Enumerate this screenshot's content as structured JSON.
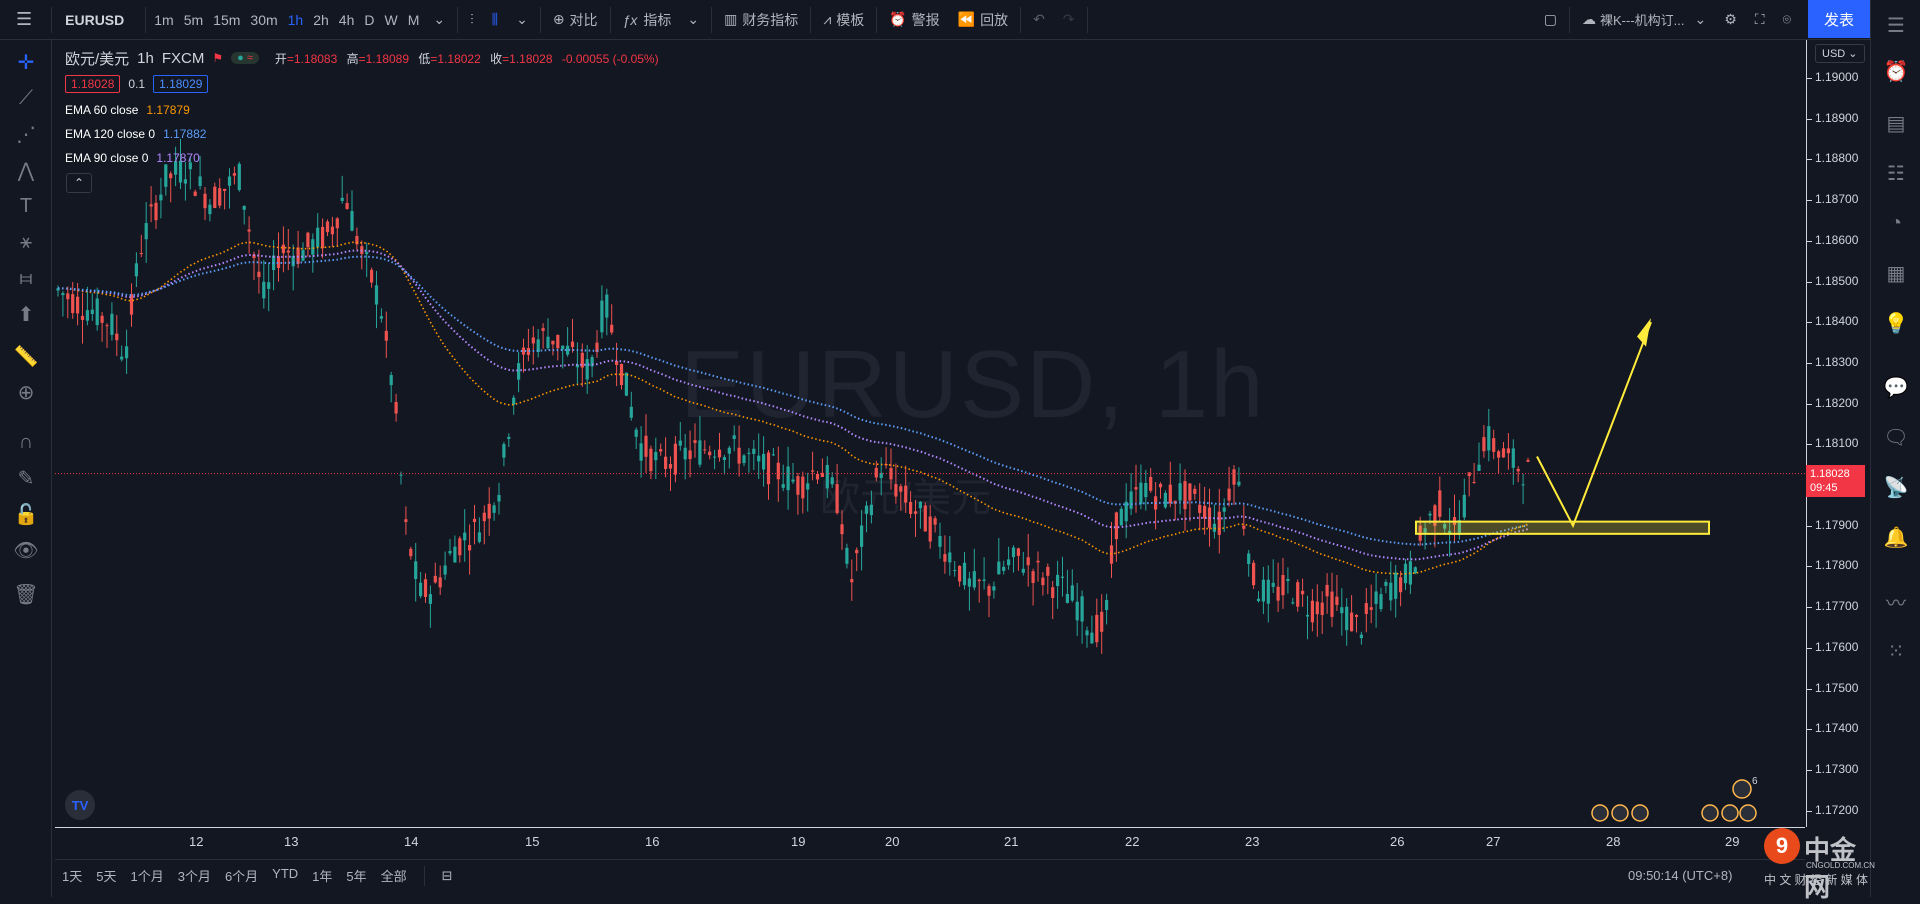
{
  "toolbar": {
    "symbol": "EURUSD",
    "intervals": [
      "1m",
      "5m",
      "15m",
      "30m",
      "1h",
      "2h",
      "4h",
      "D",
      "W",
      "M"
    ],
    "active_interval": "1h",
    "compare_label": "对比",
    "indicators_label": "指标",
    "financials_label": "财务指标",
    "templates_label": "模板",
    "alert_label": "警报",
    "replay_label": "回放",
    "layout_name": "裸K---机构订...",
    "publish_label": "发表"
  },
  "legend": {
    "title": "欧元/美元",
    "interval": "1h",
    "source": "FXCM",
    "open_label": "开",
    "open": "=1.18083",
    "high_label": "高",
    "high": "=1.18089",
    "low_label": "低",
    "low": "=1.18022",
    "close_label": "收",
    "close": "=1.18028",
    "change": "-0.00055 (-0.05%)",
    "bid": "1.18028",
    "spread": "0.1",
    "ask": "1.18029",
    "ema60_label": "EMA 60 close",
    "ema60_value": "1.17879",
    "ema120_label": "EMA 120 close 0",
    "ema120_value": "1.17882",
    "ema90_label": "EMA 90 close 0",
    "ema90_value": "1.17870"
  },
  "watermark": {
    "main": "EURUSD, 1h",
    "sub": "欧元/美元"
  },
  "price_scale": {
    "currency": "USD",
    "labels": [
      "1.19000",
      "1.18900",
      "1.18800",
      "1.18700",
      "1.18600",
      "1.18500",
      "1.18400",
      "1.18300",
      "1.18200",
      "1.18100",
      "1.17900",
      "1.17800",
      "1.17700",
      "1.17600",
      "1.17500",
      "1.17400",
      "1.17300",
      "1.17200"
    ],
    "current_price": "1.18028",
    "countdown": "09:45"
  },
  "time_scale": {
    "labels": [
      "12",
      "13",
      "14",
      "15",
      "16",
      "19",
      "20",
      "21",
      "22",
      "23",
      "26",
      "27",
      "28",
      "29"
    ]
  },
  "bottom": {
    "ranges": [
      "1天",
      "5天",
      "1个月",
      "3个月",
      "6个月",
      "YTD",
      "1年",
      "5年",
      "全部"
    ],
    "clock": "09:50:14 (UTC+8)"
  },
  "events": {
    "badge_count": "6"
  },
  "colors": {
    "background": "#131722",
    "up": "#26a69a",
    "down": "#ef5350",
    "ema60": "#ff9800",
    "ema120": "#5b9cf6",
    "ema90": "#b388ff",
    "zone": "#ffeb3b",
    "accent": "#2962ff"
  },
  "chart_data": {
    "type": "candlestick",
    "title": "欧元/美元",
    "ylim": [
      1.1715,
      1.1902
    ],
    "ema_series": [
      {
        "name": "EMA 60 close",
        "last": 1.17879
      },
      {
        "name": "EMA 120 close 0",
        "last": 1.17882
      },
      {
        "name": "EMA 90 close 0",
        "last": 1.1787
      }
    ],
    "zone": {
      "low": 1.1788,
      "high": 1.1791
    },
    "last_price": 1.18028
  },
  "site_watermark": {
    "name": "中金网",
    "url": "CNGOLD.COM.CN",
    "tagline": "中 文 财 经 新 媒 体"
  }
}
